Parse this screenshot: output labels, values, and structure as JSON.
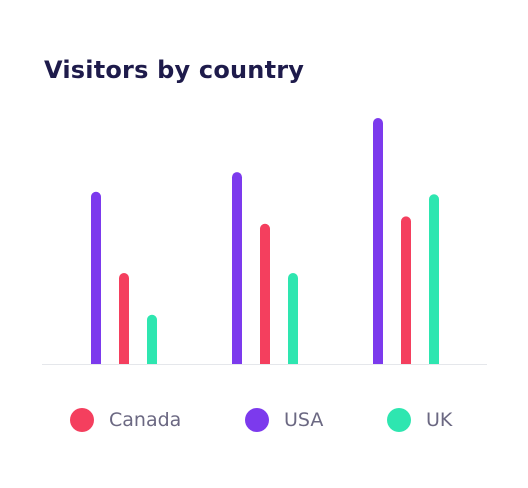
{
  "title": "Visitors by country",
  "colors": {
    "Canada": "#f43f5e",
    "USA": "#7c3aed",
    "UK": "#2ee6b0",
    "axis": "#e5e7eb",
    "title": "#1e1b4b"
  },
  "legend": [
    {
      "name": "Canada",
      "label": "Canada",
      "color": "#f43f5e"
    },
    {
      "name": "USA",
      "label": "USA",
      "color": "#7c3aed"
    },
    {
      "name": "UK",
      "label": "UK",
      "color": "#2ee6b0"
    }
  ],
  "chart_data": {
    "type": "bar",
    "title": "Visitors by country",
    "xlabel": "",
    "ylabel": "",
    "categories": [
      "",
      "",
      ""
    ],
    "ylim": [
      0,
      100
    ],
    "grid": false,
    "legend_position": "bottom",
    "series": [
      {
        "name": "USA",
        "color": "#7c3aed",
        "values": [
          70,
          78,
          100
        ]
      },
      {
        "name": "Canada",
        "color": "#f43f5e",
        "values": [
          37,
          57,
          60
        ]
      },
      {
        "name": "UK",
        "color": "#2ee6b0",
        "values": [
          20,
          37,
          69
        ]
      }
    ]
  }
}
